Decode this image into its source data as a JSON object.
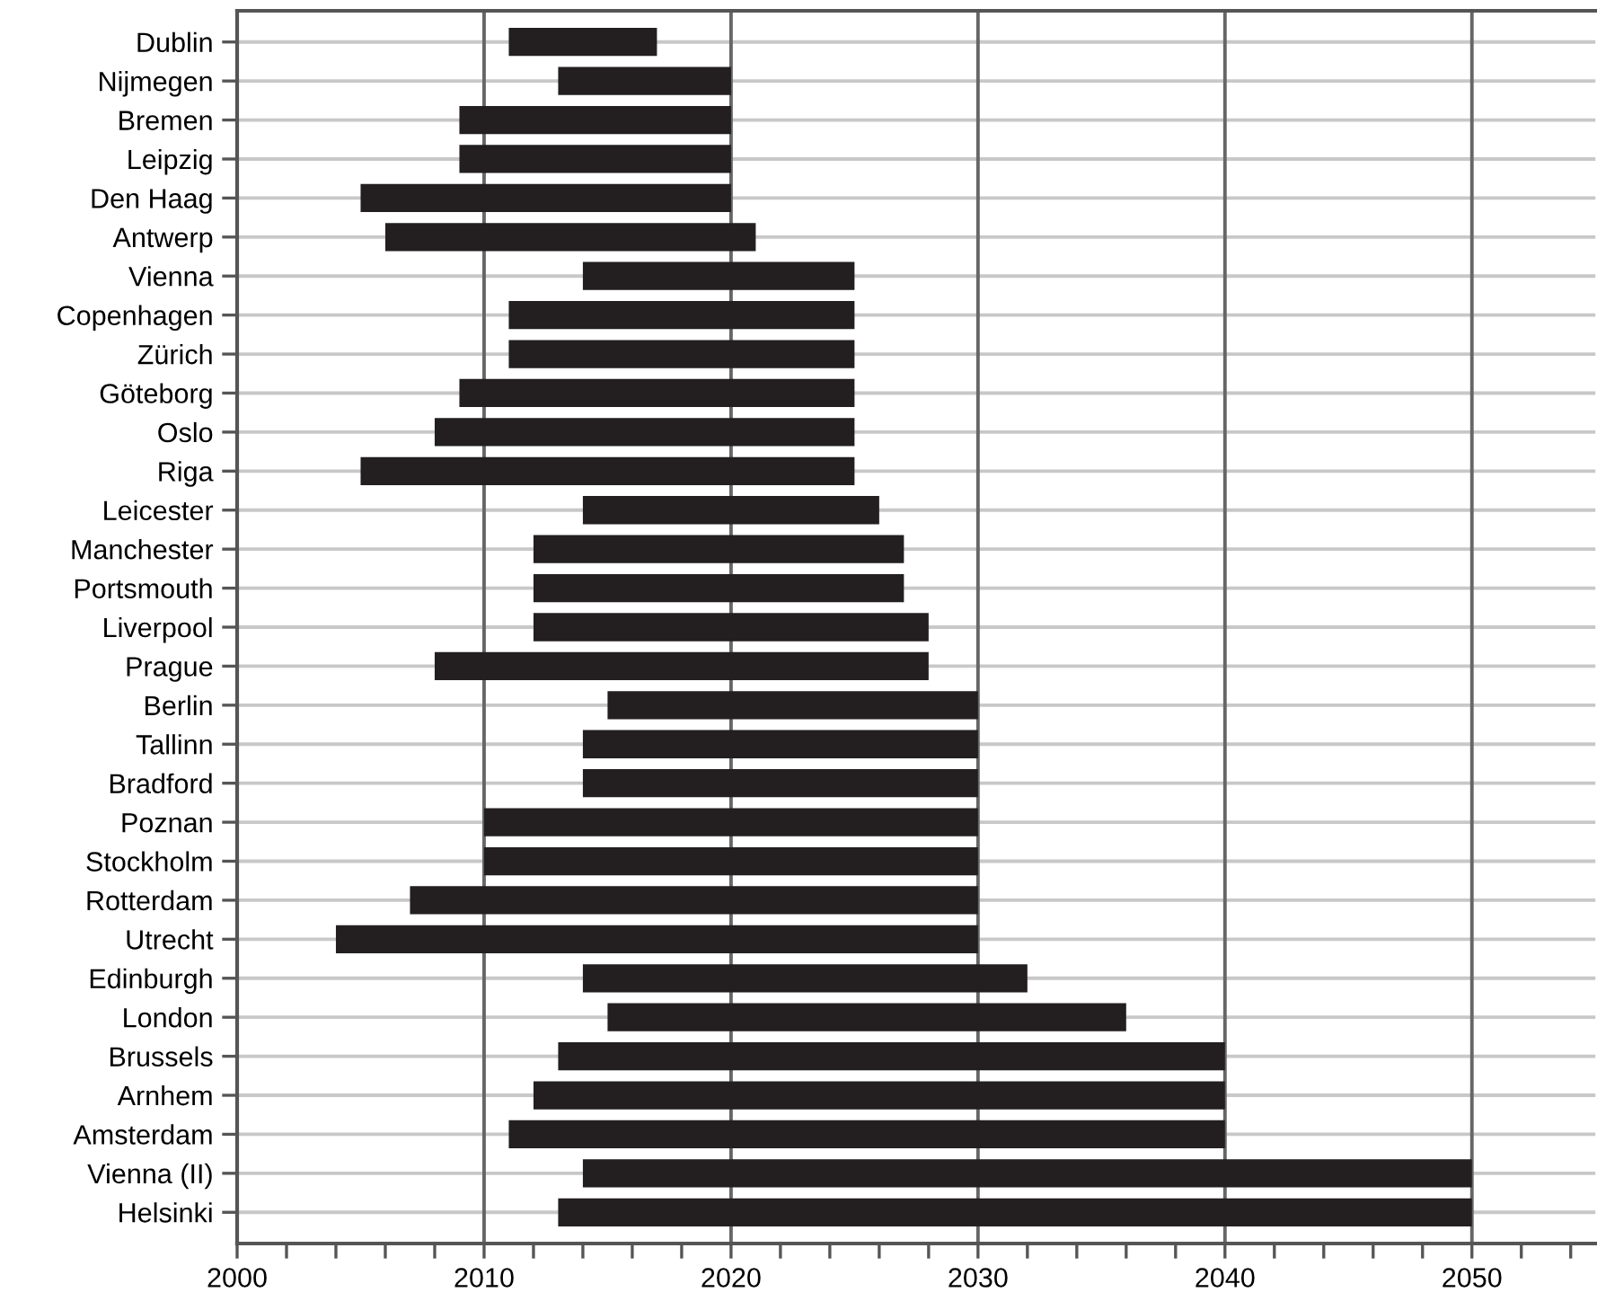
{
  "chart_data": {
    "type": "bar",
    "orientation": "horizontal",
    "color": "#231f20",
    "categories": [
      "Dublin",
      "Nijmegen",
      "Bremen",
      "Leipzig",
      "Den Haag",
      "Antwerp",
      "Vienna",
      "Copenhagen",
      "Zürich",
      "Göteborg",
      "Oslo",
      "Riga",
      "Leicester",
      "Manchester",
      "Portsmouth",
      "Liverpool",
      "Prague",
      "Berlin",
      "Tallinn",
      "Bradford",
      "Poznan",
      "Stockholm",
      "Rotterdam",
      "Utrecht",
      "Edinburgh",
      "London",
      "Brussels",
      "Arnhem",
      "Amsterdam",
      "Vienna (II)",
      "Helsinki"
    ],
    "base": [
      2011,
      2013,
      2009,
      2009,
      2005,
      2006,
      2014,
      2011,
      2011,
      2009,
      2008,
      2005,
      2014,
      2012,
      2012,
      2012,
      2008,
      2015,
      2014,
      2014,
      2010,
      2010,
      2007,
      2004,
      2014,
      2015,
      2013,
      2012,
      2011,
      2014,
      2013
    ],
    "values": [
      6,
      7,
      11,
      11,
      15,
      15,
      11,
      14,
      14,
      16,
      17,
      20,
      12,
      15,
      15,
      16,
      20,
      15,
      16,
      16,
      20,
      20,
      23,
      26,
      18,
      21,
      27,
      28,
      29,
      36,
      37
    ],
    "xlim": [
      2000,
      2055
    ],
    "xticks": [
      2000,
      {
        "value": 2002,
        "label": null
      },
      {
        "value": 2004,
        "label": null
      },
      {
        "value": 2006,
        "label": null
      },
      {
        "value": 2008,
        "label": null
      },
      2010,
      {
        "value": 2012,
        "label": null
      },
      {
        "value": 2014,
        "label": null
      },
      {
        "value": 2016,
        "label": null
      },
      {
        "value": 2018,
        "label": null
      },
      2020,
      {
        "value": 2022,
        "label": null
      },
      {
        "value": 2024,
        "label": null
      },
      {
        "value": 2026,
        "label": null
      },
      {
        "value": 2028,
        "label": null
      },
      2030,
      {
        "value": 2032,
        "label": null
      },
      {
        "value": 2034,
        "label": null
      },
      {
        "value": 2036,
        "label": null
      },
      {
        "value": 2038,
        "label": null
      },
      2040,
      {
        "value": 2042,
        "label": null
      },
      {
        "value": 2044,
        "label": null
      },
      {
        "value": 2046,
        "label": null
      },
      {
        "value": 2048,
        "label": null
      },
      2050,
      {
        "value": 2052,
        "label": null
      },
      {
        "value": 2054,
        "label": null
      }
    ],
    "grid": true
  }
}
